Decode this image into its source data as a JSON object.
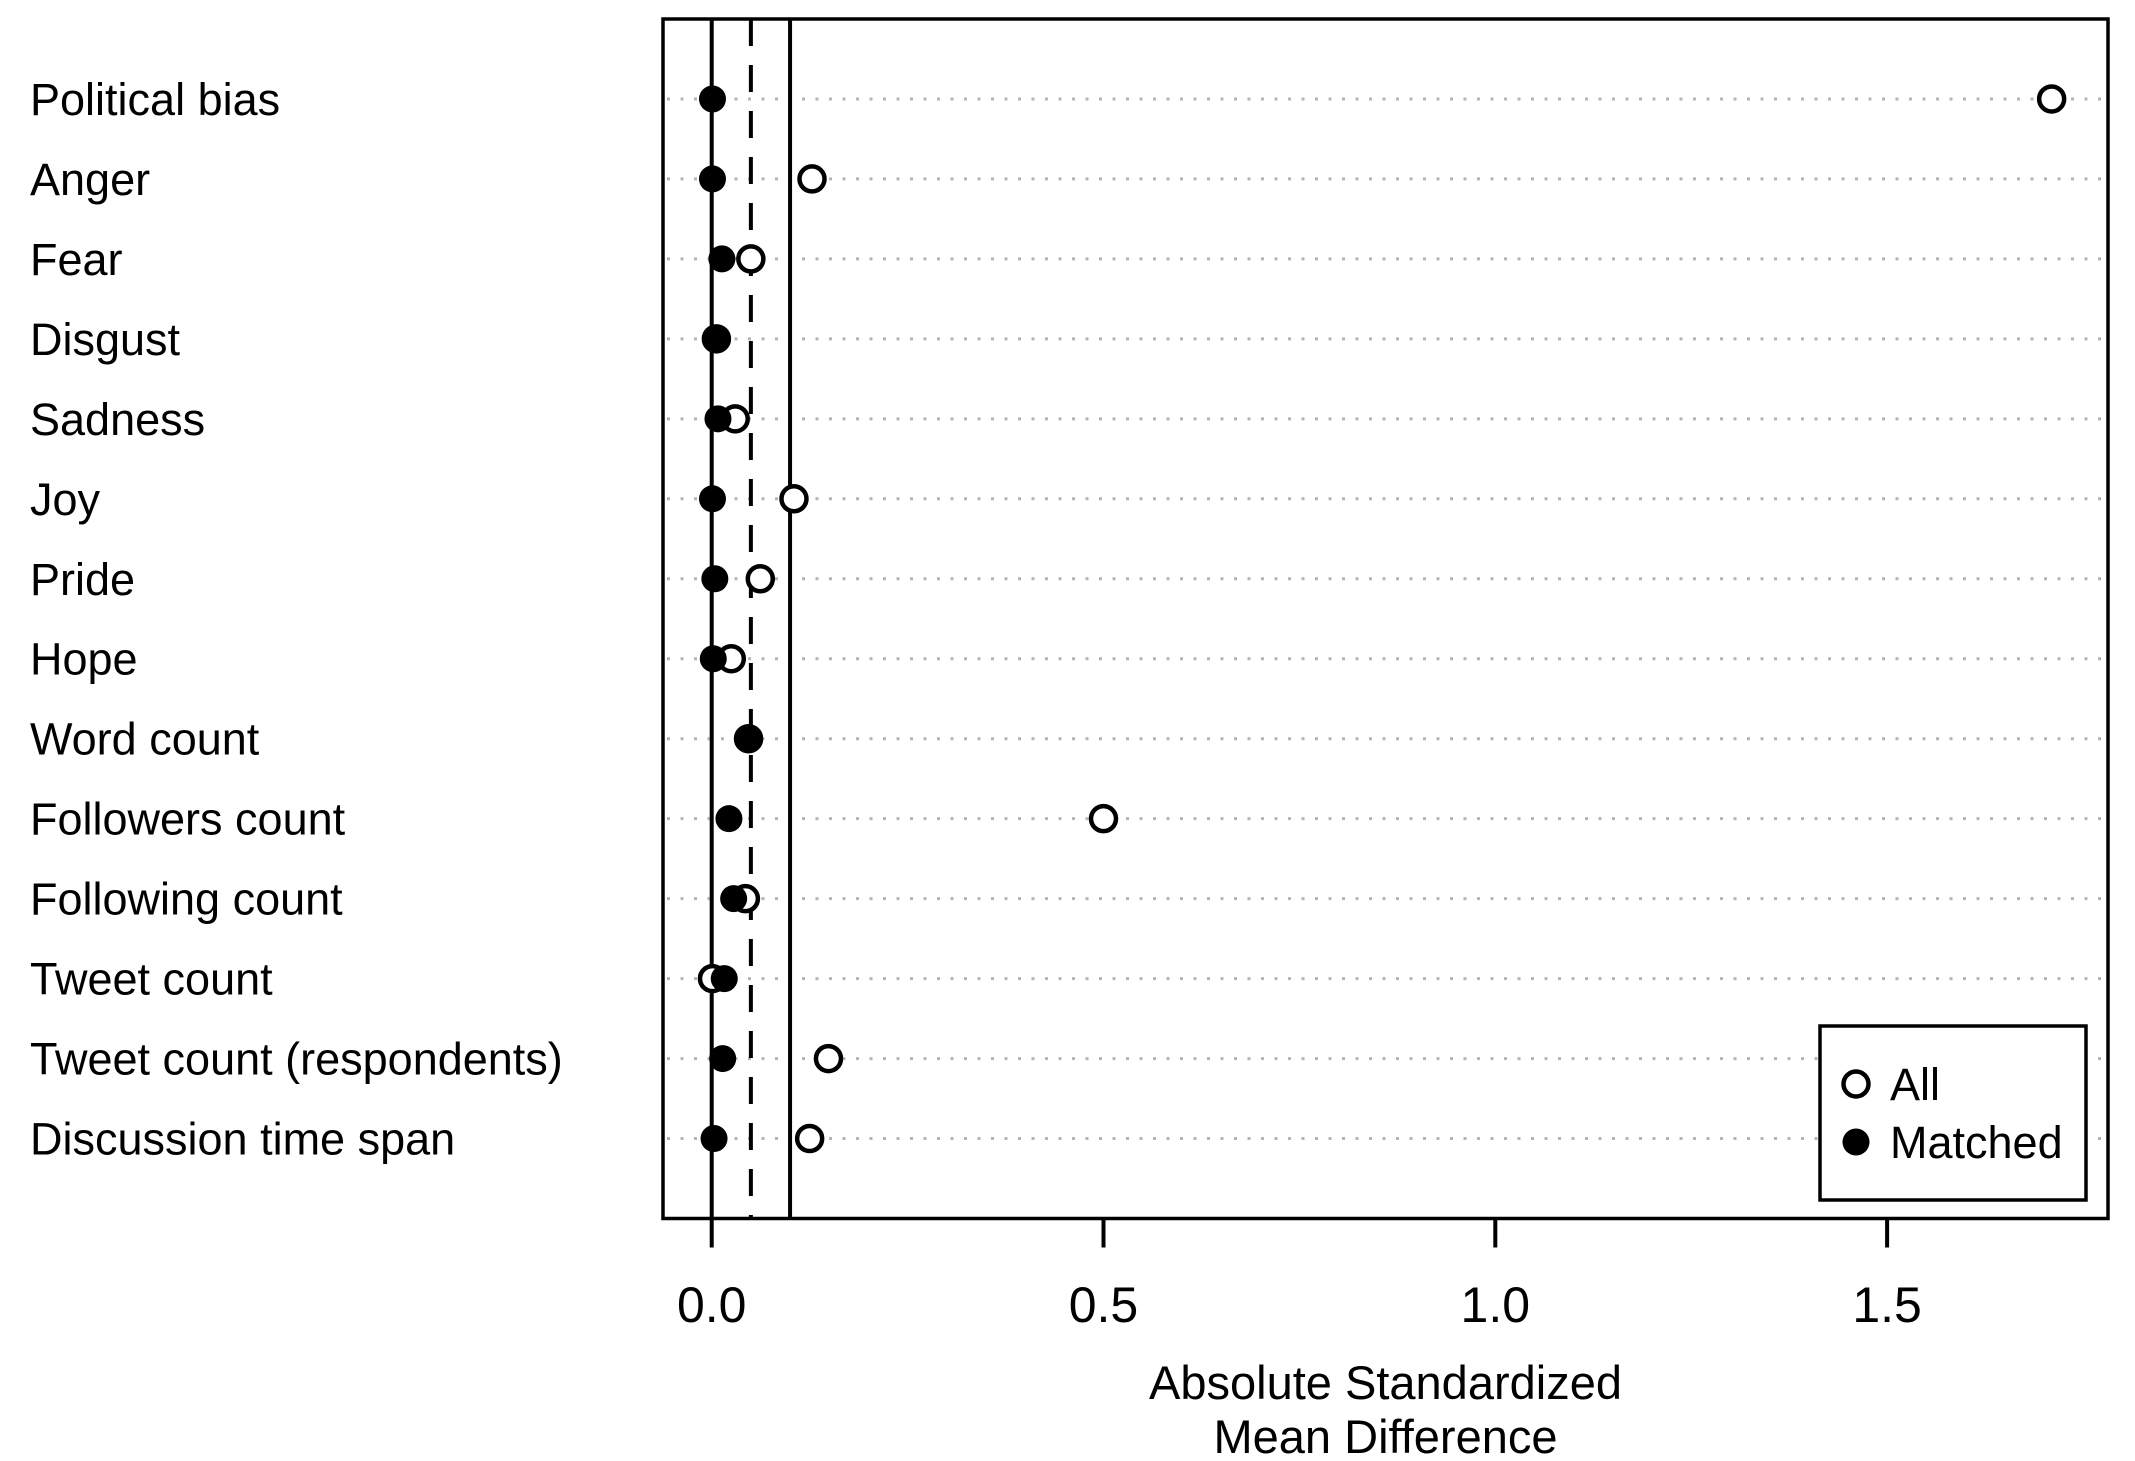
{
  "chart_data": {
    "type": "scatter",
    "subtype": "dot-plot-covariate-balance",
    "categories": [
      "Political bias",
      "Anger",
      "Fear",
      "Disgust",
      "Sadness",
      "Joy",
      "Pride",
      "Hope",
      "Word count",
      "Followers count",
      "Following count",
      "Tweet count",
      "Tweet count (respondents)",
      "Discussion time span"
    ],
    "series": [
      {
        "name": "All",
        "marker": "open-circle",
        "values": [
          1.71,
          0.128,
          0.05,
          0.006,
          0.03,
          0.105,
          0.062,
          0.025,
          0.047,
          0.5,
          0.043,
          0.001,
          0.149,
          0.125
        ]
      },
      {
        "name": "Matched",
        "marker": "filled-circle",
        "values": [
          0.001,
          0.001,
          0.013,
          0.006,
          0.008,
          0.001,
          0.004,
          0.002,
          0.047,
          0.022,
          0.028,
          0.016,
          0.014,
          0.003
        ]
      }
    ],
    "xlabel_lines": [
      "Absolute Standardized",
      "Mean Difference"
    ],
    "x_ticks": [
      {
        "value": 0.0,
        "label": "0.0"
      },
      {
        "value": 0.5,
        "label": "0.5"
      },
      {
        "value": 1.0,
        "label": "1.0"
      },
      {
        "value": 1.5,
        "label": "1.5"
      }
    ],
    "xlim": [
      -0.062,
      1.782
    ],
    "reference_lines": [
      {
        "x": 0.0,
        "style": "solid"
      },
      {
        "x": 0.05,
        "style": "dashed"
      },
      {
        "x": 0.1,
        "style": "solid"
      }
    ],
    "grid": {
      "horizontal": "dotted",
      "vertical": "none"
    },
    "legend": {
      "position": "bottom-right",
      "entries": [
        {
          "label": "All",
          "marker": "open-circle"
        },
        {
          "label": "Matched",
          "marker": "filled-circle"
        }
      ]
    },
    "colors": {
      "foreground": "#000000",
      "background": "#ffffff",
      "grid": "#b4b4b4"
    }
  }
}
